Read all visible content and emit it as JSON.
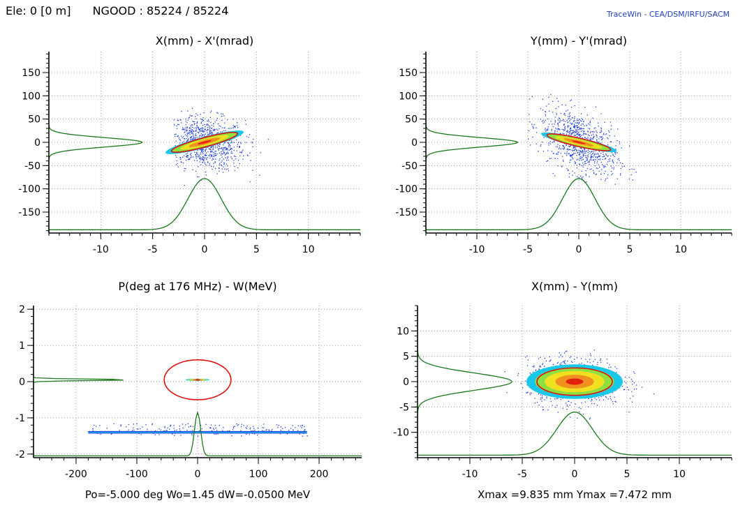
{
  "header": {
    "element": "Ele: 0 [0 m]",
    "ngood": "NGOOD : 85224 / 85224",
    "brand": "TraceWin - CEA/DSM/IRFU/SACM"
  },
  "colors": {
    "frame": "#000000",
    "grid": "#9a9a9a",
    "profile": "#1a7a1a",
    "ellipse": "#e01010",
    "halo": "#1f3fdf",
    "core_cyan": "#18c8e8",
    "core_green": "#8de040",
    "core_yellow": "#f0e020",
    "core_orange": "#f09020",
    "core_red": "#e02010"
  },
  "chart_data": [
    {
      "type": "scatter",
      "title": "X(mm) - X'(mrad)",
      "xlim": [
        -15,
        15
      ],
      "ylim": [
        -195,
        195
      ],
      "xticks": [
        -10,
        -5,
        0,
        5,
        10
      ],
      "yticks": [
        150,
        100,
        50,
        0,
        -50,
        -100,
        -150
      ],
      "grid": true,
      "core": {
        "cx": 0,
        "cy": 0,
        "a": 3.9,
        "b": 12,
        "tilt_mm_per_mrad": 0.2
      },
      "ellipse": {
        "a": 3.3,
        "b": 10,
        "tilt_mm_per_mrad": 0.2
      },
      "halo_extent": {
        "x": [
          -3,
          9
        ],
        "y": [
          -100,
          90
        ]
      },
      "x_profile": {
        "center": 0,
        "width": 1.6,
        "peak_y": -78,
        "base_y": -188
      },
      "y_profile": {
        "center": 0,
        "width": 10,
        "left_x": -15,
        "peak_x": -6
      },
      "footer": ""
    },
    {
      "type": "scatter",
      "title": "Y(mm) - Y'(mrad)",
      "xlim": [
        -15,
        15
      ],
      "ylim": [
        -195,
        195
      ],
      "xticks": [
        -10,
        -5,
        0,
        5,
        10
      ],
      "yticks": [
        150,
        100,
        50,
        0,
        -50,
        -100,
        -150
      ],
      "grid": true,
      "core": {
        "cx": 0,
        "cy": 0,
        "a": 3.8,
        "b": 10,
        "tilt_mm_per_mrad": -0.25
      },
      "ellipse": {
        "a": 3.2,
        "b": 9,
        "tilt_mm_per_mrad": -0.25
      },
      "halo_extent": {
        "x": [
          -5,
          8
        ],
        "y": [
          -90,
          120
        ]
      },
      "x_profile": {
        "center": 0,
        "width": 1.6,
        "peak_y": -78,
        "base_y": -188
      },
      "y_profile": {
        "center": 0,
        "width": 10,
        "left_x": -15,
        "peak_x": -6
      },
      "footer": ""
    },
    {
      "type": "scatter",
      "title": "P(deg at 176 MHz) - W(MeV)",
      "xlim": [
        -270,
        270
      ],
      "ylim": [
        -2.1,
        2.1
      ],
      "xticks": [
        -200,
        -100,
        0,
        100,
        200
      ],
      "yticks": [
        2,
        1,
        0,
        -1,
        -2
      ],
      "grid": true,
      "core": {
        "cx": 0,
        "cy": 0.05,
        "a": 20,
        "b": 0.03,
        "tilt_mm_per_mrad": 0
      },
      "ellipse": {
        "a": 55,
        "b": 0.55,
        "tilt_mm_per_mrad": 0
      },
      "band": {
        "y": -1.4,
        "x": [
          -180,
          180
        ]
      },
      "halo_extent": {
        "x": [
          -180,
          180
        ],
        "y": [
          -1.45,
          -1.25
        ]
      },
      "x_profile": {
        "center": 0,
        "width": 5,
        "peak_y": -0.85,
        "base_y": -2.05
      },
      "y_profile": {
        "center": 0.05,
        "width": 0.02,
        "left_x": -270,
        "peak_x": -110
      },
      "footer": "Po=-5.000 deg  Wo=1.45  dW=-0.0500 MeV"
    },
    {
      "type": "scatter",
      "title": "X(mm) - Y(mm)",
      "xlim": [
        -15,
        15
      ],
      "ylim": [
        -15,
        15
      ],
      "xticks": [
        -10,
        -5,
        0,
        5,
        10
      ],
      "yticks": [
        10,
        5,
        0,
        -5,
        -10
      ],
      "grid": true,
      "core": {
        "cx": 0,
        "cy": 0,
        "a": 4.6,
        "b": 3.4,
        "tilt_mm_per_mrad": 0
      },
      "ellipse": {
        "a": 3.6,
        "b": 2.7,
        "tilt_mm_per_mrad": 0
      },
      "halo_extent": {
        "x": [
          -7,
          10
        ],
        "y": [
          -8,
          7.5
        ]
      },
      "x_profile": {
        "center": 0,
        "width": 1.7,
        "peak_y": -6,
        "base_y": -14.5
      },
      "y_profile": {
        "center": 0,
        "width": 1.7,
        "left_x": -15,
        "peak_x": -6
      },
      "footer": "Xmax =9.835 mm  Ymax =7.472 mm"
    }
  ]
}
